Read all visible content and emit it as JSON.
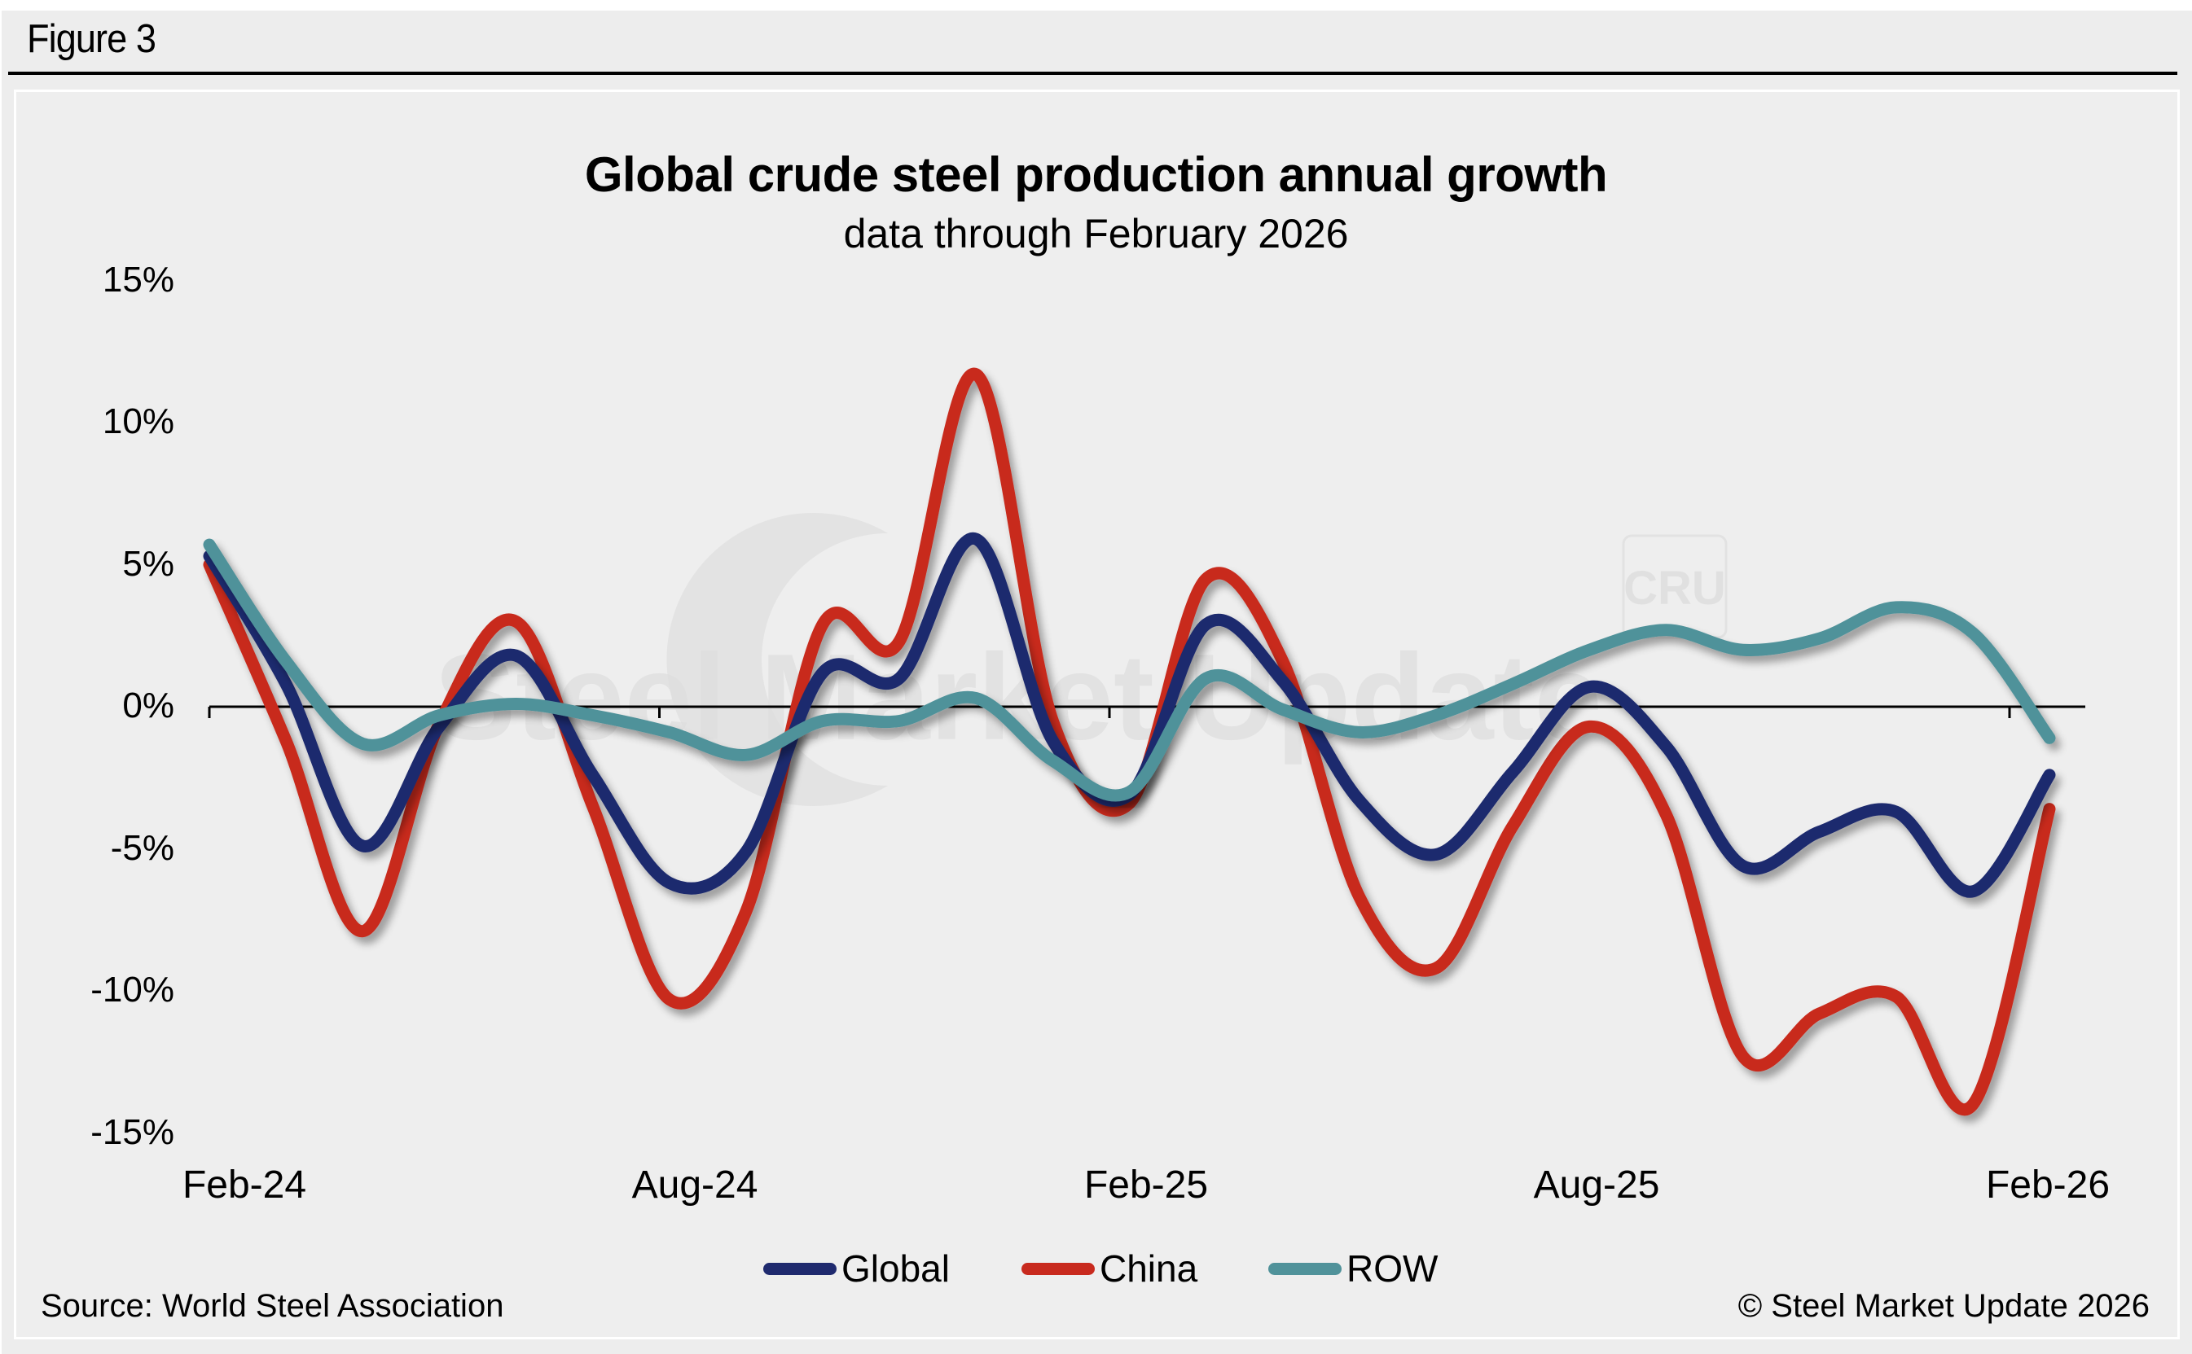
{
  "figure_label": "Figure 3",
  "source": "Source: World Steel Association",
  "copyright": "© Steel Market Update 2026",
  "watermark": {
    "text": "Steel Market Update",
    "logo_text": "CRU"
  },
  "colors": {
    "global": "#1f2a6e",
    "china": "#c82a1e",
    "row": "#50929a",
    "background": "#eeeeee"
  },
  "chart_data": {
    "type": "line",
    "title": "Global crude steel production annual growth",
    "subtitle": "data through February 2026",
    "xlabel": "",
    "ylabel": "",
    "ylim": [
      -15,
      15
    ],
    "yticks": [
      15,
      10,
      5,
      0,
      -5,
      -10,
      -15
    ],
    "ytick_labels": [
      "15%",
      "10%",
      "5%",
      "0%",
      "-5%",
      "-10%",
      "-15%"
    ],
    "xtick_labels": [
      "Feb-24",
      "Aug-24",
      "Feb-25",
      "Aug-25",
      "Feb-26"
    ],
    "xtick_positions": [
      0,
      6,
      12,
      18,
      24
    ],
    "grid": false,
    "smooth": true,
    "legend_position": "bottom-center",
    "x": [
      "Feb-24",
      "Mar-24",
      "Apr-24",
      "May-24",
      "Jun-24",
      "Jul-24",
      "Aug-24",
      "Sep-24",
      "Oct-24",
      "Nov-24",
      "Dec-24",
      "Jan-25",
      "Feb-25",
      "Mar-25",
      "Apr-25",
      "May-25",
      "Jun-25",
      "Jul-25",
      "Aug-25",
      "Sep-25",
      "Oct-25",
      "Nov-25",
      "Dec-25",
      "Jan-26",
      "Feb-26"
    ],
    "series": [
      {
        "name": "Global",
        "color": "#1f2a6e",
        "values": [
          5.3,
          0.8,
          -4.9,
          -0.7,
          1.8,
          -2.4,
          -6.2,
          -5.1,
          1.2,
          1.0,
          5.9,
          -1.2,
          -3.1,
          2.9,
          0.9,
          -3.3,
          -5.2,
          -2.3,
          0.7,
          -1.4,
          -5.6,
          -4.4,
          -3.7,
          -6.5,
          -2.4
        ]
      },
      {
        "name": "China",
        "color": "#c82a1e",
        "values": [
          5.0,
          -1.2,
          -7.9,
          -0.6,
          3.0,
          -3.5,
          -10.3,
          -7.2,
          2.9,
          2.3,
          11.7,
          -0.5,
          -3.4,
          4.5,
          1.6,
          -6.7,
          -9.2,
          -4.2,
          -0.7,
          -3.8,
          -12.3,
          -10.8,
          -10.2,
          -14.0,
          -3.6
        ]
      },
      {
        "name": "ROW",
        "color": "#50929a",
        "values": [
          5.7,
          1.6,
          -1.3,
          -0.3,
          0.1,
          -0.3,
          -0.9,
          -1.7,
          -0.5,
          -0.5,
          0.3,
          -1.9,
          -3.0,
          1.0,
          -0.1,
          -0.9,
          -0.3,
          0.8,
          2.0,
          2.7,
          2.0,
          2.4,
          3.5,
          2.6,
          -1.1
        ]
      }
    ]
  }
}
